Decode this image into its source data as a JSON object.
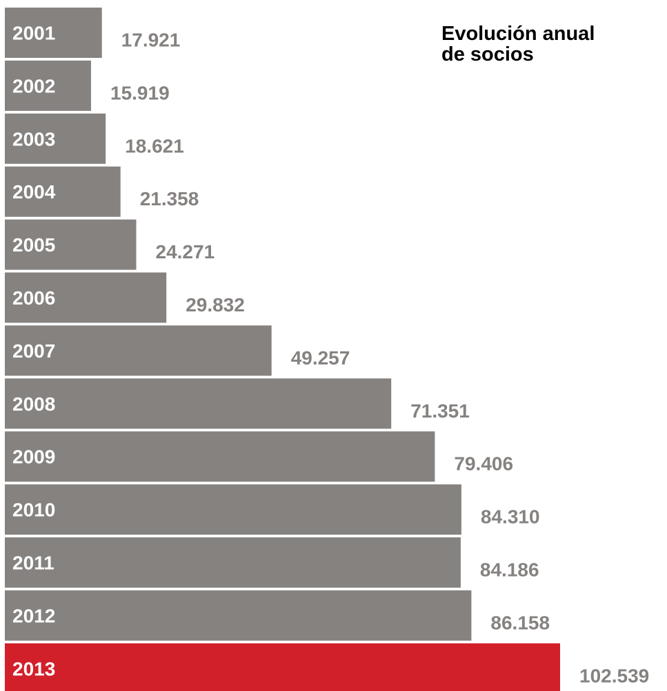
{
  "chart_data": {
    "type": "bar",
    "orientation": "horizontal",
    "title_lines": [
      "Evolución anual",
      "de socios"
    ],
    "categories": [
      "2001",
      "2002",
      "2003",
      "2004",
      "2005",
      "2006",
      "2007",
      "2008",
      "2009",
      "2010",
      "2011",
      "2012",
      "2013"
    ],
    "values": [
      17921,
      15919,
      18621,
      21358,
      24271,
      29832,
      49257,
      71351,
      79406,
      84310,
      84186,
      86158,
      102539
    ],
    "value_labels": [
      "17.921",
      "15.919",
      "18.621",
      "21.358",
      "24.271",
      "29.832",
      "49.257",
      "71.351",
      "79.406",
      "84.310",
      "84.186",
      "86.158",
      "102.539"
    ],
    "highlight_category": "2013",
    "xlabel": "",
    "ylabel": "",
    "grid": false,
    "legend": "none",
    "colors": {
      "bar": "#858280",
      "highlight": "#d2202a",
      "category_label": "#ffffff",
      "value_label": "#858280",
      "title": "#000000"
    }
  }
}
